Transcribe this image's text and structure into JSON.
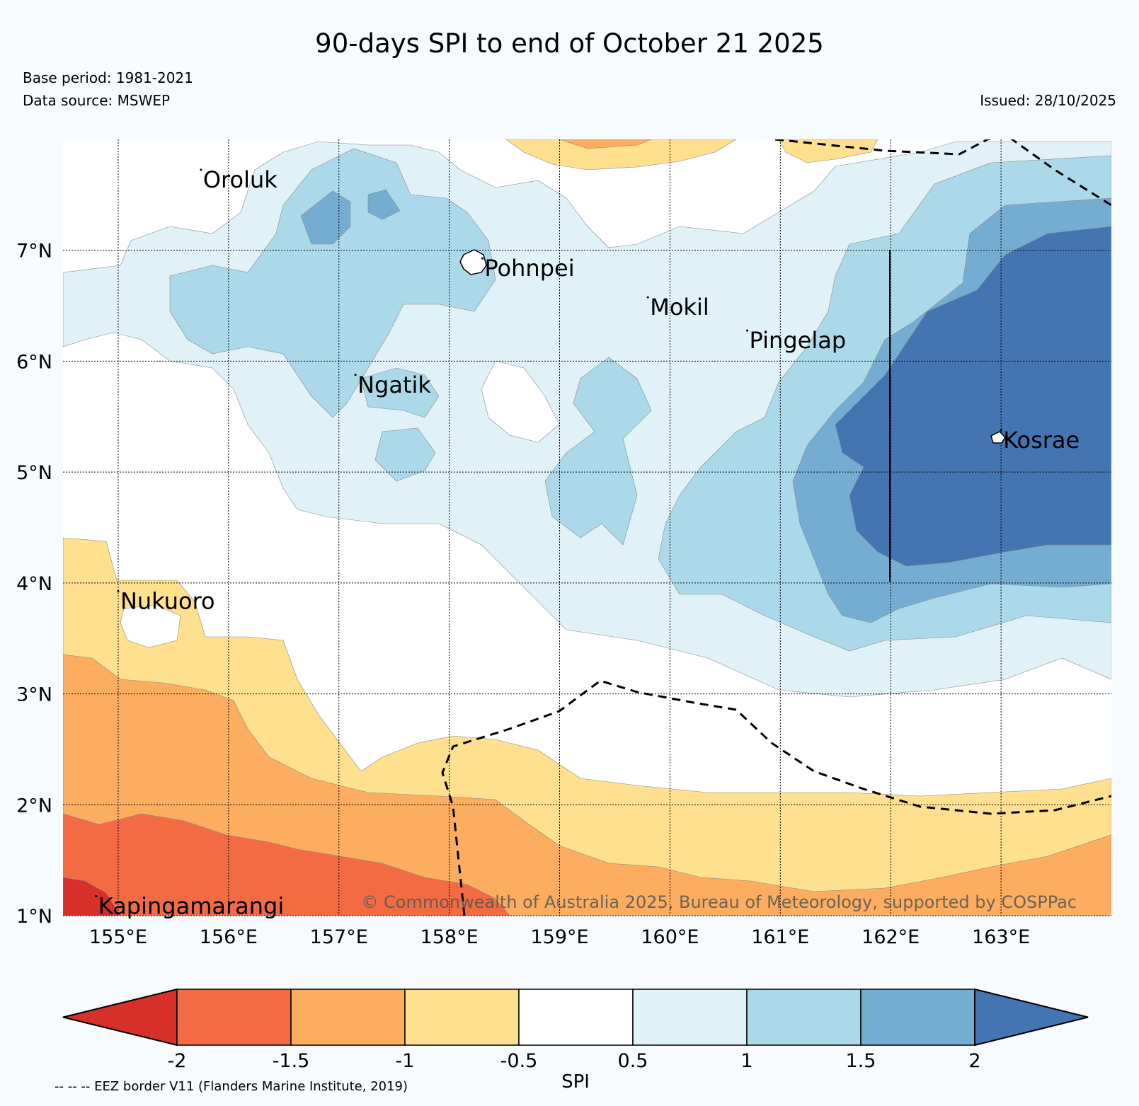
{
  "title": "90-days SPI to end of October 21 2025",
  "base_period": "Base period: 1981-2021",
  "data_source": "Data source: MSWEP",
  "issued": "Issued: 28/10/2025",
  "copyright": "© Commonwealth of Australia 2025, Bureau of Meteorology, supported by COSPPac",
  "eez_note": "-- -- -- EEZ border V11 (Flanders Marine Institute, 2019)",
  "map": {
    "lon_range": [
      154.5,
      164.0
    ],
    "lat_range": [
      1.0,
      8.0
    ],
    "lat_ticks": [
      {
        "value": 7,
        "label": "7°N"
      },
      {
        "value": 6,
        "label": "6°N"
      },
      {
        "value": 5,
        "label": "5°N"
      },
      {
        "value": 4,
        "label": "4°N"
      },
      {
        "value": 3,
        "label": "3°N"
      },
      {
        "value": 2,
        "label": "2°N"
      },
      {
        "value": 1,
        "label": "1°N"
      }
    ],
    "lon_ticks": [
      {
        "value": 155,
        "label": "155°E"
      },
      {
        "value": 156,
        "label": "156°E"
      },
      {
        "value": 157,
        "label": "157°E"
      },
      {
        "value": 158,
        "label": "158°E"
      },
      {
        "value": 159,
        "label": "159°E"
      },
      {
        "value": 160,
        "label": "160°E"
      },
      {
        "value": 161,
        "label": "161°E"
      },
      {
        "value": 162,
        "label": "162°E"
      },
      {
        "value": 163,
        "label": "163°E"
      }
    ],
    "places": [
      {
        "name": "Oroluk",
        "lon": 155.75,
        "lat": 7.65
      },
      {
        "name": "Pohnpei",
        "lon": 158.3,
        "lat": 6.85
      },
      {
        "name": "Mokil",
        "lon": 159.8,
        "lat": 6.5
      },
      {
        "name": "Pingelap",
        "lon": 160.7,
        "lat": 6.2
      },
      {
        "name": "Ngatik",
        "lon": 157.15,
        "lat": 5.8
      },
      {
        "name": "Kosrae",
        "lon": 163.0,
        "lat": 5.3
      },
      {
        "name": "Nukuoro",
        "lon": 155.0,
        "lat": 3.85
      },
      {
        "name": "Kapingamarangi",
        "lon": 154.8,
        "lat": 1.1
      }
    ]
  },
  "colorbar": {
    "label": "SPI",
    "ticks": [
      "-2",
      "-1.5",
      "-1",
      "-0.5",
      "0.5",
      "1",
      "1.5",
      "2"
    ],
    "colors": [
      "#d7302a",
      "#f26b43",
      "#fcad60",
      "#fee08e",
      "#ffffff",
      "#e0f2f8",
      "#abd9e9",
      "#74add1",
      "#4574b3"
    ]
  }
}
